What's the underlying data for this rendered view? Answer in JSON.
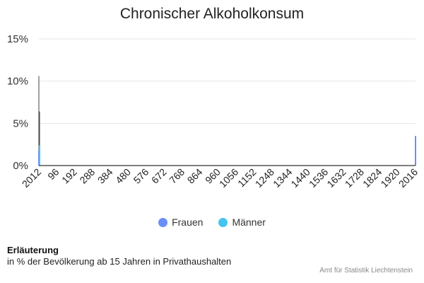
{
  "chart_data": {
    "type": "bar",
    "title": "Chronischer Alkoholkonsum",
    "ylim": [
      0,
      15
    ],
    "yticks": [
      "0%",
      "5%",
      "10%",
      "15%"
    ],
    "ytick_values": [
      0,
      5,
      10,
      15
    ],
    "xticks": [
      "2012",
      "96",
      "192",
      "288",
      "384",
      "480",
      "576",
      "672",
      "768",
      "864",
      "960",
      "1056",
      "1152",
      "1248",
      "1344",
      "1440",
      "1536",
      "1632",
      "1728",
      "1824",
      "1920",
      "2016"
    ],
    "legend_position": "bottom",
    "series": [
      {
        "name": "Frauen",
        "color": "#6b8ff7",
        "points": [
          {
            "x": "2012",
            "y": 1.8,
            "err_high": 10.6
          },
          {
            "x": "2016",
            "y": 3.5
          }
        ]
      },
      {
        "name": "Männer",
        "color": "#45c4ee",
        "points": [
          {
            "x": "2012",
            "y": 2.4,
            "err_high": 6.4
          }
        ]
      }
    ]
  },
  "note_heading": "Erläuterung",
  "note": "in % der Bevölkerung ab 15 Jahren in Privathaushalten",
  "credit": "Amt für Statistik Liechtenstein"
}
